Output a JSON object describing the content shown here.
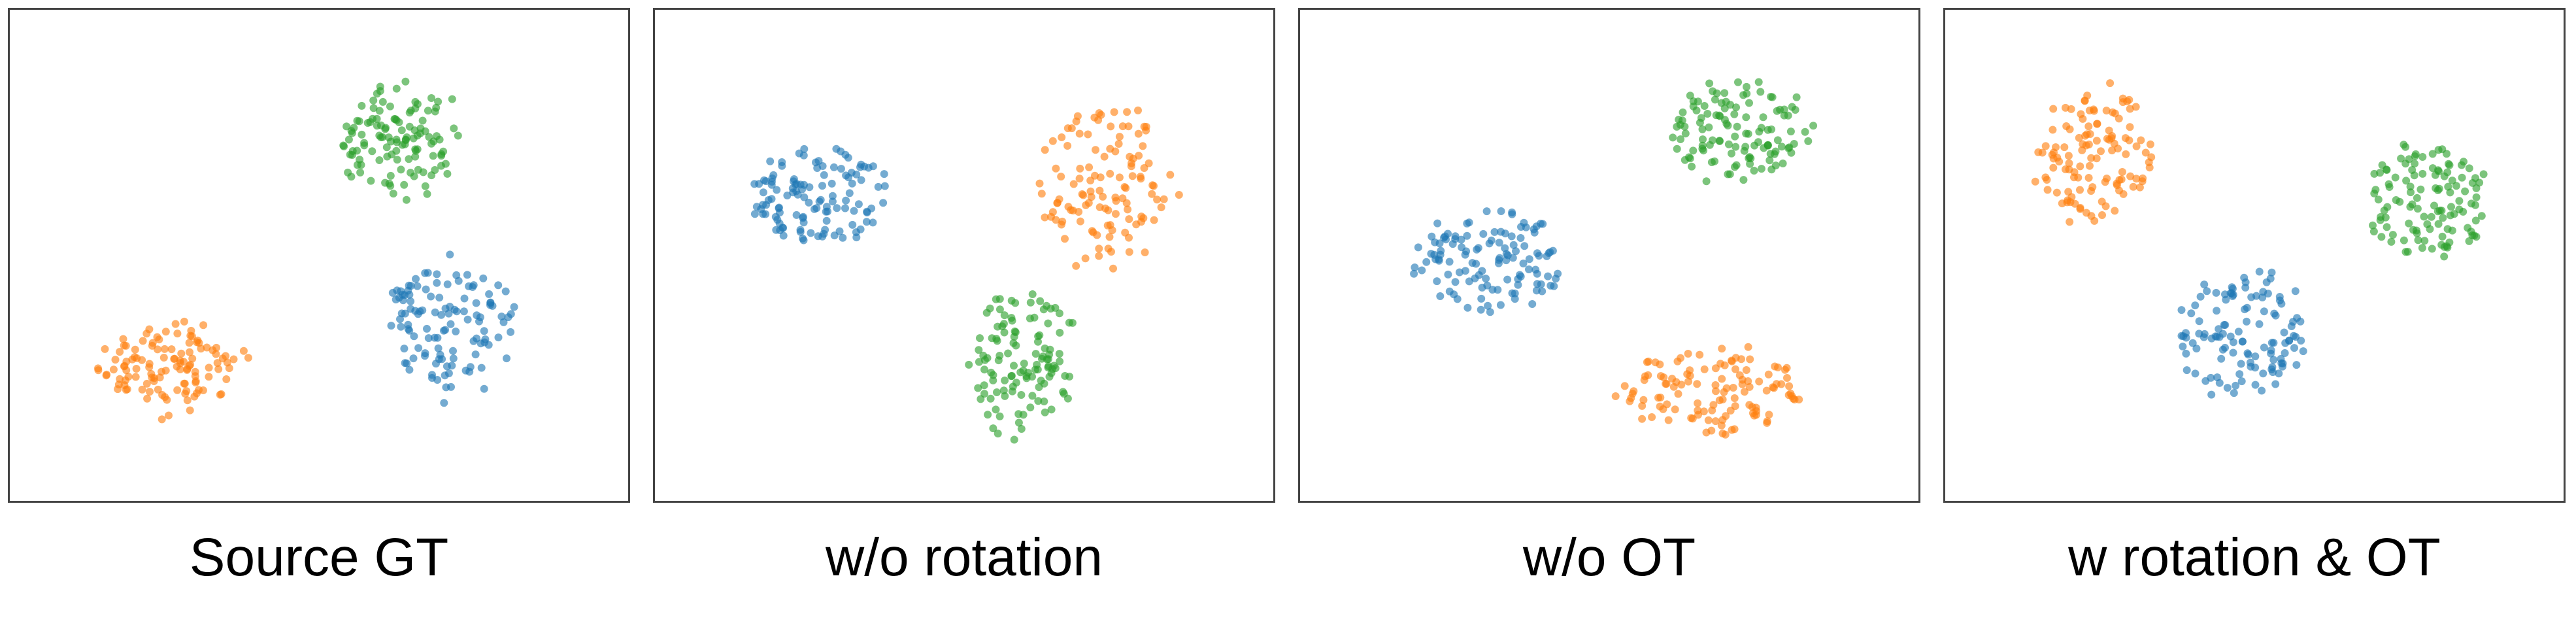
{
  "colors": {
    "blue": "#1f77b4",
    "orange": "#ff7f0e",
    "green": "#2ca02c"
  },
  "chart_data": [
    {
      "type": "scatter",
      "title": "Source GT",
      "grid": false,
      "xlim": [
        0,
        100
      ],
      "ylim": [
        0,
        100
      ],
      "series": [
        {
          "color": "blue",
          "center": [
            73,
            34
          ],
          "spread": [
            11,
            15
          ],
          "n": 120,
          "seed": 11
        },
        {
          "color": "orange",
          "center": [
            25,
            25
          ],
          "spread": [
            12,
            10
          ],
          "n": 120,
          "seed": 12
        },
        {
          "color": "green",
          "center": [
            64,
            76
          ],
          "spread": [
            10,
            12
          ],
          "n": 120,
          "seed": 13
        }
      ]
    },
    {
      "type": "scatter",
      "title": "w/o rotation",
      "grid": false,
      "xlim": [
        0,
        100
      ],
      "ylim": [
        0,
        100
      ],
      "series": [
        {
          "color": "blue",
          "center": [
            25,
            63
          ],
          "spread": [
            12,
            11
          ],
          "n": 120,
          "seed": 21
        },
        {
          "color": "orange",
          "center": [
            75,
            65
          ],
          "spread": [
            11,
            17
          ],
          "n": 120,
          "seed": 22
        },
        {
          "color": "green",
          "center": [
            60,
            27
          ],
          "spread": [
            9,
            16
          ],
          "n": 120,
          "seed": 23
        }
      ]
    },
    {
      "type": "scatter",
      "title": "w/o OT",
      "grid": false,
      "xlim": [
        0,
        100
      ],
      "ylim": [
        0,
        100
      ],
      "series": [
        {
          "color": "blue",
          "center": [
            30,
            49
          ],
          "spread": [
            13,
            11
          ],
          "n": 120,
          "seed": 31
        },
        {
          "color": "orange",
          "center": [
            68,
            20
          ],
          "spread": [
            15,
            9
          ],
          "n": 120,
          "seed": 32
        },
        {
          "color": "green",
          "center": [
            73,
            78
          ],
          "spread": [
            11,
            11
          ],
          "n": 120,
          "seed": 33
        }
      ]
    },
    {
      "type": "scatter",
      "title": "w rotation & OT",
      "grid": false,
      "xlim": [
        0,
        100
      ],
      "ylim": [
        0,
        100
      ],
      "series": [
        {
          "color": "blue",
          "center": [
            48,
            32
          ],
          "spread": [
            11,
            14
          ],
          "n": 120,
          "seed": 41
        },
        {
          "color": "orange",
          "center": [
            23,
            72
          ],
          "spread": [
            10,
            14
          ],
          "n": 120,
          "seed": 42
        },
        {
          "color": "green",
          "center": [
            80,
            62
          ],
          "spread": [
            10,
            12
          ],
          "n": 120,
          "seed": 43
        }
      ]
    }
  ]
}
